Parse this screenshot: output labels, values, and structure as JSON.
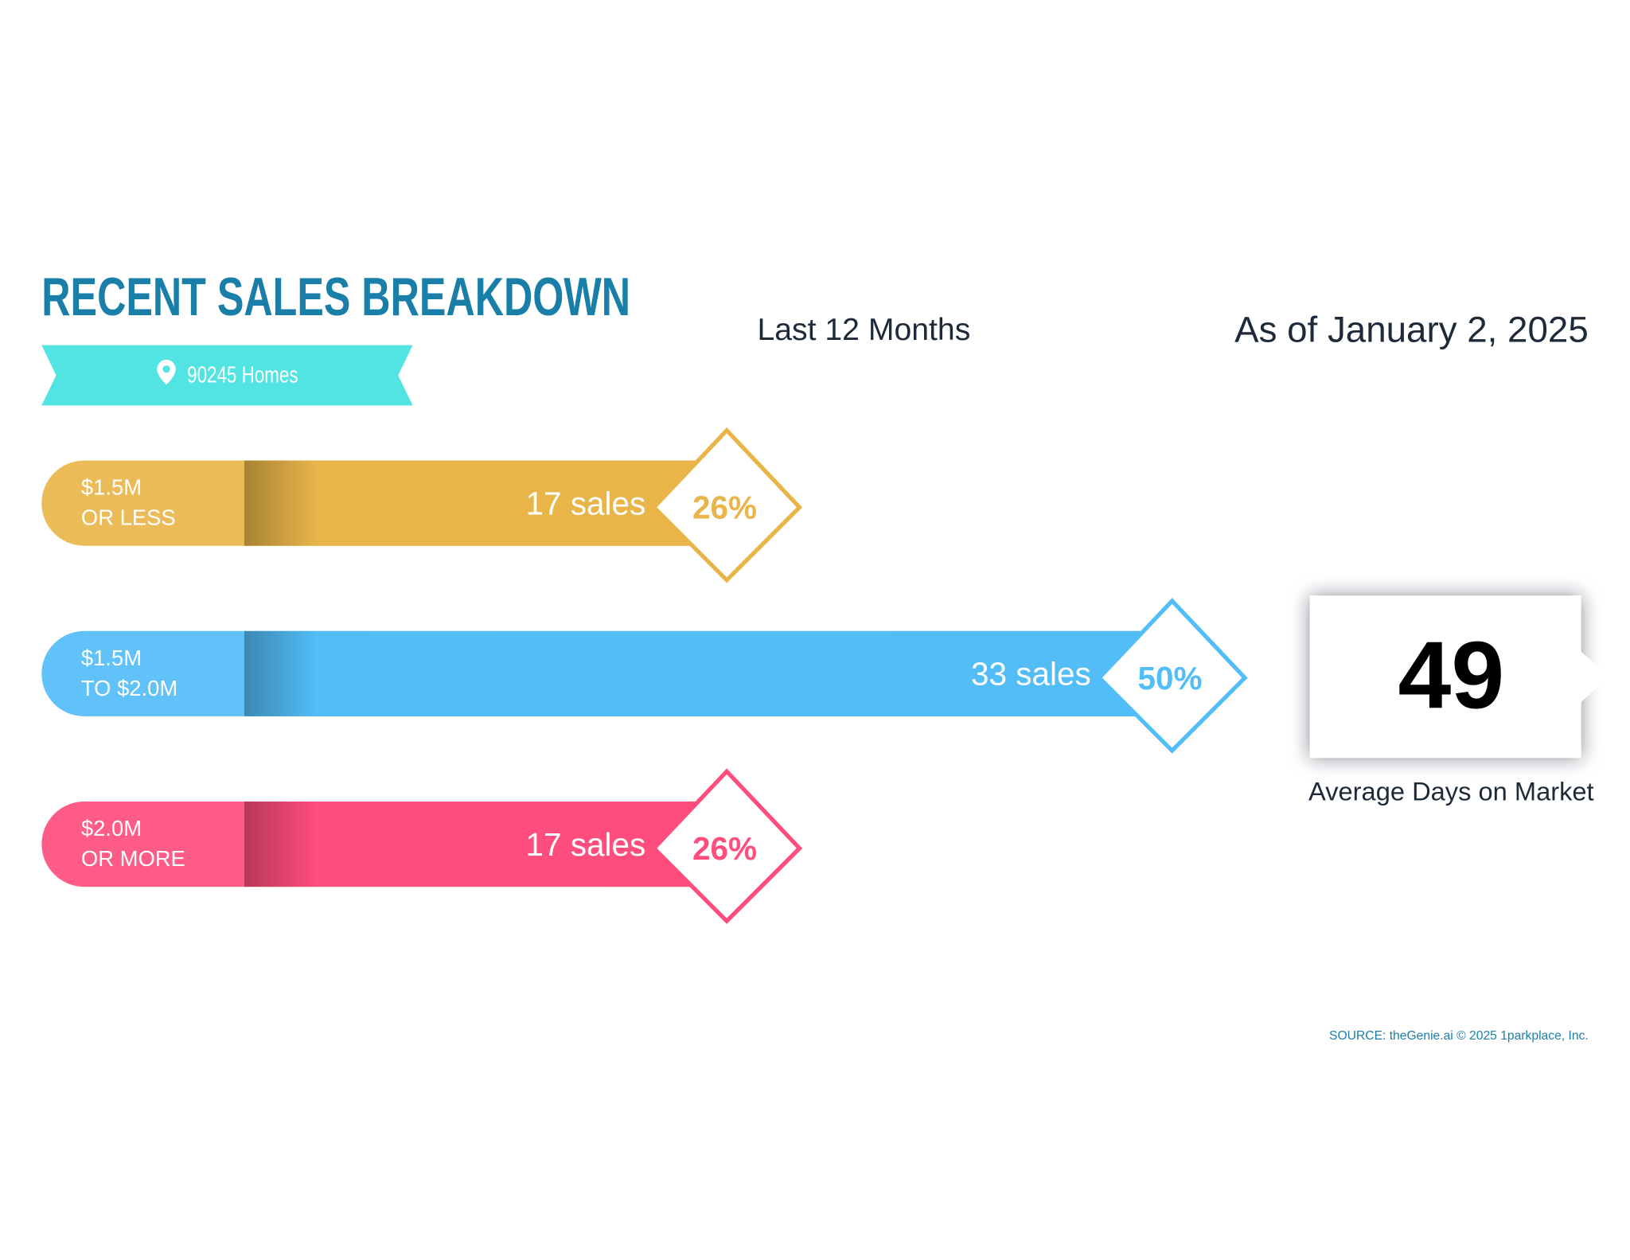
{
  "chart_data": {
    "type": "bar",
    "title": "RECENT SALES BREAKDOWN",
    "subtitle": "90245 Homes",
    "period": "Last 12 Months",
    "as_of": "As of January 2, 2025",
    "categories": [
      [
        "$1.5M",
        "OR LESS"
      ],
      [
        "$1.5M",
        "TO $2.0M"
      ],
      [
        "$2.0M",
        "OR MORE"
      ]
    ],
    "colors": [
      "#e9b549",
      "#52bdf7",
      "#ff4d7d"
    ],
    "series": [
      {
        "name": "share",
        "values": [
          26,
          50,
          26
        ],
        "value_labels": [
          "26%",
          "50%",
          "26%"
        ]
      },
      {
        "name": "sales",
        "values": [
          17,
          33,
          17
        ],
        "value_labels": [
          "17 sales",
          "33 sales",
          "17 sales"
        ]
      }
    ],
    "highlight": {
      "value": 49,
      "label": "Average Days on Market"
    },
    "source": "SOURCE: theGenie.ai © 2025 1parkplace, Inc."
  }
}
